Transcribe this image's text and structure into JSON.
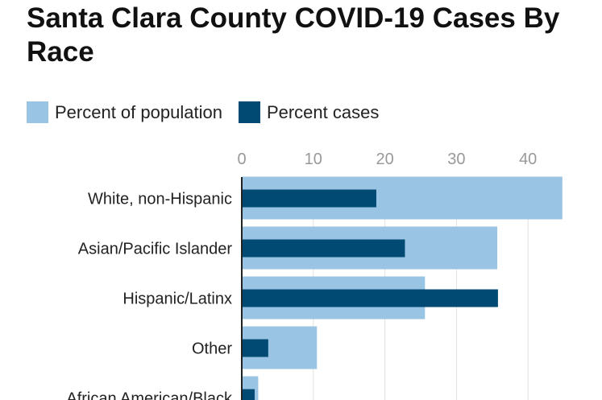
{
  "chart_data": {
    "type": "bar",
    "orientation": "horizontal",
    "title": "Santa Clara County COVID-19 Cases By Race",
    "categories": [
      "White, non-Hispanic",
      "Asian/Pacific Islander",
      "Hispanic/Latinx",
      "Other",
      "African American/Black"
    ],
    "series": [
      {
        "name": "Percent of population",
        "color": "#9ac4e3",
        "values": [
          44.8,
          35.7,
          25.6,
          10.5,
          2.3
        ]
      },
      {
        "name": "Percent cases",
        "color": "#004a73",
        "values": [
          18.8,
          22.8,
          35.8,
          3.7,
          1.8
        ]
      }
    ],
    "xticks": [
      "0",
      "10",
      "20",
      "30",
      "40"
    ],
    "xlim": [
      0,
      45
    ],
    "grid": true,
    "axis_position": "top",
    "legend_placement": "top-left"
  }
}
